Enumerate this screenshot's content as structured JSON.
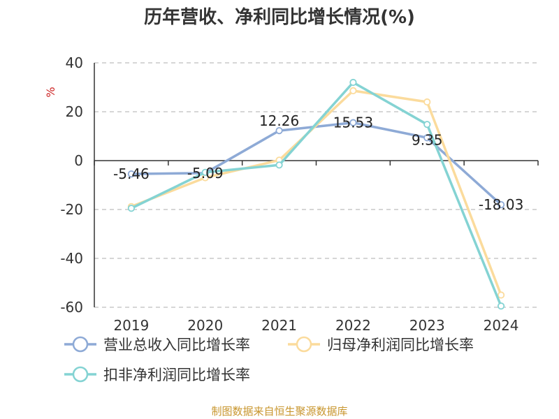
{
  "chart_data": {
    "type": "line",
    "title": "历年营收、净利同比增长情况(%)",
    "ylabel": "%",
    "xlabel": "",
    "categories": [
      "2019",
      "2020",
      "2021",
      "2022",
      "2023",
      "2024"
    ],
    "ylim": [
      -60,
      40
    ],
    "yticks": [
      40,
      20,
      0,
      -20,
      -40,
      -60
    ],
    "grid": true,
    "legend_position": "bottom",
    "series": [
      {
        "name": "营业总收入同比增长率",
        "color": "#8eaad6",
        "values": [
          -5.46,
          -5.09,
          12.26,
          15.53,
          9.35,
          -18.03
        ],
        "labels": [
          "-5.46",
          "-5.09",
          "12.26",
          "15.53",
          "9.35",
          "-18.03"
        ]
      },
      {
        "name": "归母净利润同比增长率",
        "color": "#fbdb9c",
        "values": [
          -18.8,
          -7.0,
          0.2,
          28.6,
          24.0,
          -55.0
        ]
      },
      {
        "name": "扣非净利润同比增长率",
        "color": "#84d3d3",
        "values": [
          -19.5,
          -4.8,
          -1.8,
          32.0,
          14.8,
          -59.5
        ]
      }
    ]
  },
  "source": "制图数据来自恒生聚源数据库"
}
